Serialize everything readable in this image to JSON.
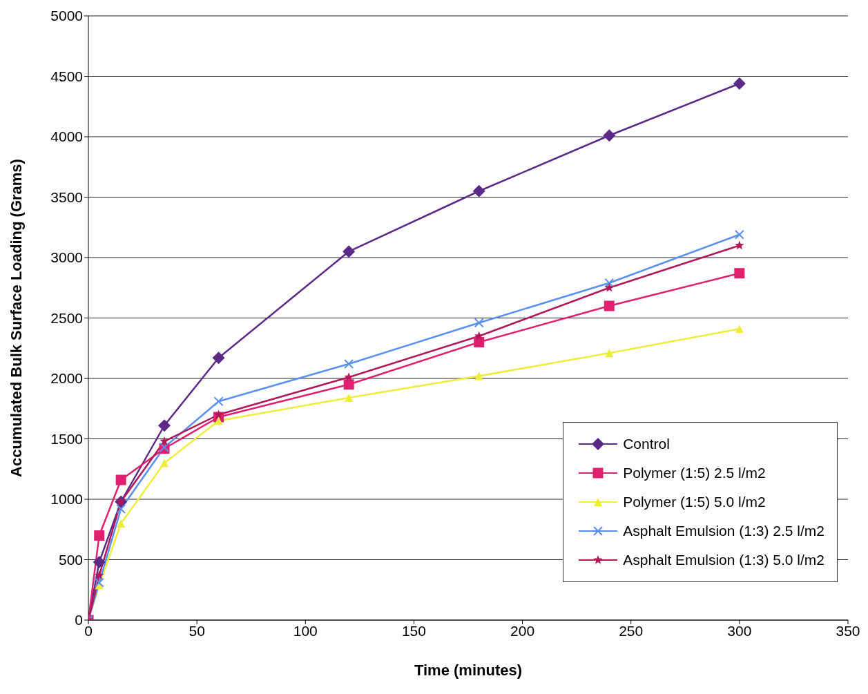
{
  "chart_data": {
    "type": "line",
    "xlabel": "Time (minutes)",
    "ylabel": "Accumulated Bulk Surface Loading (Grams)",
    "x": [
      0,
      5,
      15,
      35,
      60,
      120,
      180,
      240,
      300
    ],
    "series": [
      {
        "name": "Control",
        "color": "#5b2a86",
        "marker": "diamond",
        "values": [
          0,
          480,
          980,
          1610,
          2170,
          3050,
          3550,
          4010,
          4440
        ]
      },
      {
        "name": "Polymer (1:5) 2.5 l/m2",
        "color": "#e0206e",
        "marker": "square",
        "values": [
          0,
          700,
          1160,
          1420,
          1680,
          1950,
          2300,
          2600,
          2870
        ]
      },
      {
        "name": "Polymer (1:5) 5.0 l/m2",
        "color": "#eded3a",
        "marker": "triangle",
        "values": [
          0,
          290,
          800,
          1300,
          1650,
          1840,
          2020,
          2210,
          2410
        ]
      },
      {
        "name": "Asphalt Emulsion (1:3) 2.5 l/m2",
        "color": "#5b8ff0",
        "marker": "cross",
        "values": [
          0,
          310,
          920,
          1430,
          1810,
          2120,
          2460,
          2790,
          3190
        ]
      },
      {
        "name": "Asphalt Emulsion (1:3) 5.0 l/m2",
        "color": "#b0185a",
        "marker": "star",
        "values": [
          0,
          370,
          980,
          1480,
          1700,
          2010,
          2350,
          2750,
          3100
        ]
      }
    ],
    "xlim": [
      0,
      350
    ],
    "xticks": [
      0,
      50,
      100,
      150,
      200,
      250,
      300,
      350
    ],
    "ylim": [
      0,
      5000
    ],
    "yticks": [
      0,
      500,
      1000,
      1500,
      2000,
      2500,
      3000,
      3500,
      4000,
      4500,
      5000
    ],
    "grid": "y",
    "legend": "bottom right",
    "line_style": "solid"
  }
}
